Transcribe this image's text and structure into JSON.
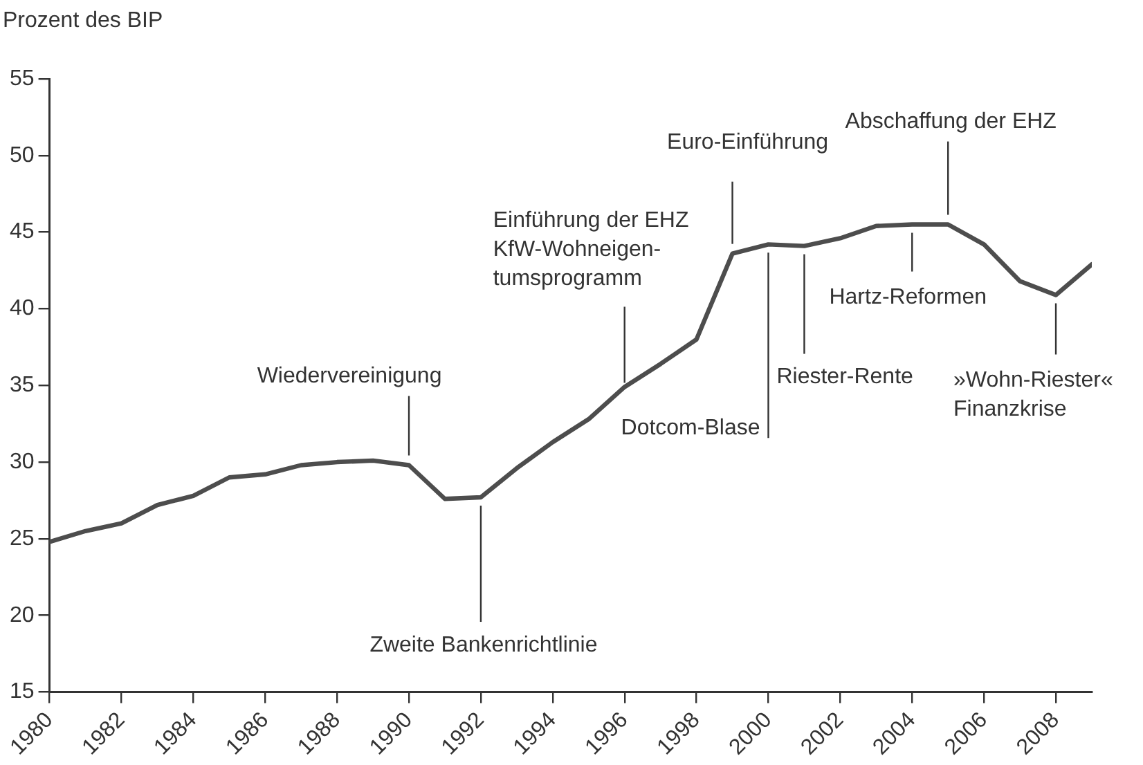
{
  "chart_data": {
    "type": "line",
    "ylabel": "Prozent des BIP",
    "x": [
      1980,
      1981,
      1982,
      1983,
      1984,
      1985,
      1986,
      1987,
      1988,
      1989,
      1990,
      1991,
      1992,
      1993,
      1994,
      1995,
      1996,
      1997,
      1998,
      1999,
      2000,
      2001,
      2002,
      2003,
      2004,
      2005,
      2006,
      2007,
      2008,
      2009
    ],
    "series": [
      {
        "color": "#4d4d4d",
        "values": [
          24.8,
          25.5,
          26.0,
          27.2,
          27.8,
          29.0,
          29.2,
          29.8,
          30.0,
          30.1,
          29.8,
          27.6,
          27.7,
          29.6,
          31.3,
          32.8,
          34.9,
          36.4,
          38.0,
          43.6,
          44.2,
          44.1,
          44.6,
          45.4,
          45.5,
          45.5,
          44.2,
          41.8,
          40.9,
          42.9
        ]
      }
    ],
    "xlim": [
      1980,
      2009
    ],
    "xticks": [
      1980,
      1982,
      1984,
      1986,
      1988,
      1990,
      1992,
      1994,
      1996,
      1998,
      2000,
      2002,
      2004,
      2006,
      2008
    ],
    "ylim": [
      15,
      55
    ],
    "yticks": [
      15,
      20,
      25,
      30,
      35,
      40,
      45,
      50,
      55
    ],
    "grid": false,
    "legend": false,
    "marker": "none",
    "line_style": "solid",
    "annotations": [
      {
        "text": "Wiedervereinigung",
        "x": 1990,
        "y": 29.8
      },
      {
        "text": "Zweite Bankenrichtlinie",
        "x": 1992,
        "y": 27.7
      },
      {
        "text": "Einführung der EHZ\nKfW-Wohneigen-\ntumsprogramm",
        "x": 1996,
        "y": 34.9
      },
      {
        "text": "Dotcom-Blase",
        "x": 2000,
        "y": 44.2
      },
      {
        "text": "Euro-Einführung",
        "x": 1999,
        "y": 43.6
      },
      {
        "text": "Riester-Rente",
        "x": 2001,
        "y": 44.1
      },
      {
        "text": "Hartz-Reformen",
        "x": 2004,
        "y": 45.5
      },
      {
        "text": "Abschaffung der EHZ",
        "x": 2005,
        "y": 45.5
      },
      {
        "text": "»Wohn-Riester«\nFinanzkrise",
        "x": 2008,
        "y": 40.9
      }
    ]
  }
}
